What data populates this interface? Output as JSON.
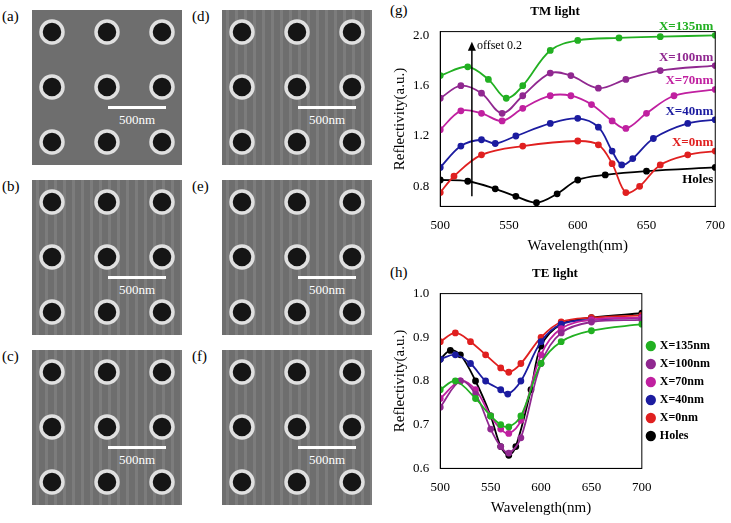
{
  "images": [
    {
      "panel": "(a)",
      "scale_bar": "500nm"
    },
    {
      "panel": "(b)",
      "scale_bar": "500nm"
    },
    {
      "panel": "(c)",
      "scale_bar": "500nm"
    },
    {
      "panel": "(d)",
      "scale_bar": "500nm"
    },
    {
      "panel": "(e)",
      "scale_bar": "500nm"
    },
    {
      "panel": "(f)",
      "scale_bar": "500nm"
    }
  ],
  "chart_data": [
    {
      "type": "line",
      "panel": "(g)",
      "title": "TM light",
      "x_label": "Wavelength(nm)",
      "y_label": "Reflectivity(a.u.)",
      "xlim": [
        500,
        700
      ],
      "xticks": [
        500,
        550,
        600,
        650,
        700
      ],
      "ylim": [
        0.64,
        2.03
      ],
      "yticks": [
        {
          "value": 0.8,
          "label": "0.8"
        },
        {
          "value": 1.2,
          "label": "1.2"
        },
        {
          "value": 1.6,
          "label": "1.6"
        },
        {
          "value": 2,
          "label": "2.0"
        }
      ],
      "grid": false,
      "annotations": [
        {
          "text": "offset 0.2",
          "x": 523,
          "y": [
            0.72,
            1.95
          ]
        }
      ],
      "series": [
        {
          "name": "X=135nm",
          "color": "#22b022",
          "marker": "circle",
          "x": [
            500,
            520,
            535,
            548,
            560,
            580,
            600,
            630,
            660,
            700
          ],
          "values": [
            1.68,
            1.75,
            1.65,
            1.5,
            1.6,
            1.88,
            1.96,
            1.98,
            1.99,
            2.0
          ]
        },
        {
          "name": "X=100nm",
          "color": "#902890",
          "marker": "circle",
          "x": [
            500,
            515,
            530,
            545,
            560,
            580,
            595,
            615,
            635,
            660,
            700
          ],
          "values": [
            1.5,
            1.6,
            1.54,
            1.38,
            1.52,
            1.7,
            1.68,
            1.58,
            1.65,
            1.72,
            1.76
          ]
        },
        {
          "name": "X=70nm",
          "color": "#c020a0",
          "marker": "circle",
          "x": [
            500,
            515,
            530,
            545,
            560,
            580,
            595,
            610,
            625,
            635,
            650,
            670,
            700
          ],
          "values": [
            1.25,
            1.4,
            1.38,
            1.32,
            1.42,
            1.52,
            1.52,
            1.45,
            1.32,
            1.26,
            1.38,
            1.52,
            1.57
          ]
        },
        {
          "name": "X=40nm",
          "color": "#1c1ca0",
          "marker": "circle",
          "x": [
            500,
            515,
            530,
            540,
            555,
            580,
            600,
            615,
            625,
            632,
            640,
            655,
            680,
            700
          ],
          "values": [
            0.95,
            1.12,
            1.17,
            1.14,
            1.2,
            1.3,
            1.34,
            1.27,
            1.08,
            0.97,
            1.02,
            1.18,
            1.3,
            1.33
          ]
        },
        {
          "name": "X=0nm",
          "color": "#e02020",
          "marker": "circle",
          "x": [
            500,
            510,
            530,
            560,
            600,
            615,
            625,
            635,
            645,
            660,
            680,
            700
          ],
          "values": [
            0.75,
            0.88,
            1.05,
            1.12,
            1.16,
            1.13,
            0.98,
            0.75,
            0.8,
            0.97,
            1.05,
            1.08
          ]
        },
        {
          "name": "Holes",
          "color": "#000000",
          "marker": "circle",
          "x": [
            500,
            520,
            540,
            555,
            570,
            585,
            600,
            620,
            650,
            700
          ],
          "values": [
            0.85,
            0.84,
            0.78,
            0.72,
            0.67,
            0.74,
            0.85,
            0.89,
            0.92,
            0.95
          ]
        }
      ]
    },
    {
      "type": "line",
      "panel": "(h)",
      "title": "TE light",
      "x_label": "Wavelength(nm)",
      "y_label": "Reflectivity(a.u.)",
      "xlim": [
        500,
        700
      ],
      "xticks": [
        500,
        550,
        600,
        650,
        700
      ],
      "ylim": [
        0.6,
        1.0
      ],
      "yticks": [
        {
          "value": 0.6,
          "label": "0.6"
        },
        {
          "value": 0.7,
          "label": "0.7"
        },
        {
          "value": 0.8,
          "label": "0.8"
        },
        {
          "value": 0.9,
          "label": "0.9"
        },
        {
          "value": 1,
          "label": "1.0"
        }
      ],
      "grid": false,
      "legend": "right",
      "series": [
        {
          "name": "X=135nm",
          "color": "#22b022",
          "marker": "circle",
          "x": [
            500,
            515,
            535,
            550,
            560,
            568,
            580,
            600,
            620,
            650,
            700
          ],
          "values": [
            0.78,
            0.8,
            0.76,
            0.72,
            0.7,
            0.695,
            0.72,
            0.84,
            0.89,
            0.915,
            0.93
          ]
        },
        {
          "name": "X=100nm",
          "color": "#902890",
          "marker": "circle",
          "x": [
            500,
            520,
            535,
            550,
            560,
            568,
            580,
            600,
            620,
            650,
            700
          ],
          "values": [
            0.74,
            0.8,
            0.77,
            0.69,
            0.65,
            0.635,
            0.67,
            0.84,
            0.91,
            0.935,
            0.94
          ]
        },
        {
          "name": "X=70nm",
          "color": "#c020a0",
          "marker": "circle",
          "x": [
            500,
            520,
            535,
            550,
            560,
            568,
            580,
            600,
            620,
            650,
            700
          ],
          "values": [
            0.76,
            0.8,
            0.78,
            0.72,
            0.69,
            0.68,
            0.71,
            0.86,
            0.92,
            0.94,
            0.945
          ]
        },
        {
          "name": "X=40nm",
          "color": "#1c1ca0",
          "marker": "circle",
          "x": [
            500,
            515,
            530,
            545,
            560,
            567,
            580,
            600,
            620,
            650,
            700
          ],
          "values": [
            0.85,
            0.86,
            0.84,
            0.8,
            0.78,
            0.77,
            0.8,
            0.89,
            0.93,
            0.94,
            0.945
          ]
        },
        {
          "name": "X=0nm",
          "color": "#e02020",
          "marker": "circle",
          "x": [
            500,
            515,
            530,
            545,
            560,
            568,
            580,
            600,
            620,
            650,
            700
          ],
          "values": [
            0.89,
            0.91,
            0.89,
            0.86,
            0.83,
            0.82,
            0.84,
            0.9,
            0.935,
            0.945,
            0.95
          ]
        },
        {
          "name": "Holes",
          "color": "#000000",
          "marker": "circle",
          "x": [
            500,
            510,
            520,
            535,
            550,
            560,
            568,
            575,
            590,
            600,
            620,
            650,
            700
          ],
          "values": [
            0.85,
            0.87,
            0.86,
            0.8,
            0.72,
            0.65,
            0.63,
            0.65,
            0.78,
            0.88,
            0.93,
            0.945,
            0.955
          ]
        }
      ]
    }
  ]
}
